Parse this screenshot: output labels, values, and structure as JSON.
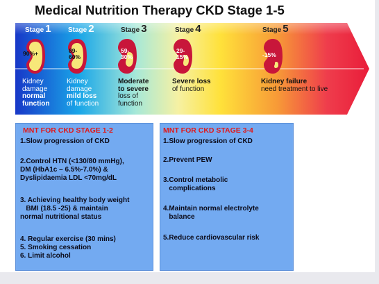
{
  "title": "Medical Nutrition Therapy CKD Stage 1-5",
  "stages": [
    {
      "word": "Stage",
      "num": "1",
      "pct": [
        "90%+"
      ],
      "desc": [
        "Kidney",
        "damage",
        "normal",
        "function"
      ],
      "bold": [
        2,
        3
      ]
    },
    {
      "word": "Stage",
      "num": "2",
      "pct": [
        "89-",
        "60%"
      ],
      "desc": [
        "Kidney",
        "damage",
        "mild loss",
        "of function"
      ],
      "bold": [
        2
      ]
    },
    {
      "word": "Stage",
      "num": "3",
      "pct": [
        "59-",
        "30%"
      ],
      "desc": [
        "Moderate",
        "to severe",
        "loss of",
        "function"
      ],
      "bold": [
        0,
        1
      ]
    },
    {
      "word": "Stage",
      "num": "4",
      "pct": [
        "29-",
        "15%"
      ],
      "desc": [
        "Severe loss",
        "of function"
      ],
      "bold": [
        0
      ]
    },
    {
      "word": "Stage",
      "num": "5",
      "pct": [
        "-15%"
      ],
      "desc": [
        "Kidney failure",
        "need treatment to live"
      ],
      "bold": [
        0
      ]
    }
  ],
  "left_box": {
    "heading": "MNT FOR CKD STAGE 1-2",
    "items": [
      "1.Slow progression of CKD",
      "2.Control HTN (<130/80 mmHg),",
      "DM (HbA1c – 6.5%-7.0%) &",
      "Dyslipidaemia LDL <70mg/dL",
      "3. Achieving healthy body weight",
      "   BMI (18.5 -25) & maintain",
      "normal nutritional status",
      "4. Regular exercise (30 mins)",
      "5. Smoking cessation",
      "6. Limit alcohol"
    ]
  },
  "right_box": {
    "heading": "MNT FOR CKD STAGE 3-4",
    "items": [
      "1.Slow progression of CKD",
      "2.Prevent PEW",
      "3.Control metabolic",
      "   complications",
      "4.Maintain normal electrolyte",
      "   balance",
      "5.Reduce cardiovascular risk"
    ]
  },
  "colors": {
    "heading_red": "#e0191a",
    "box_blue": "#73aaf1",
    "kidney_fill": "#c8163a",
    "kidney_healthy": "#f7e879"
  }
}
